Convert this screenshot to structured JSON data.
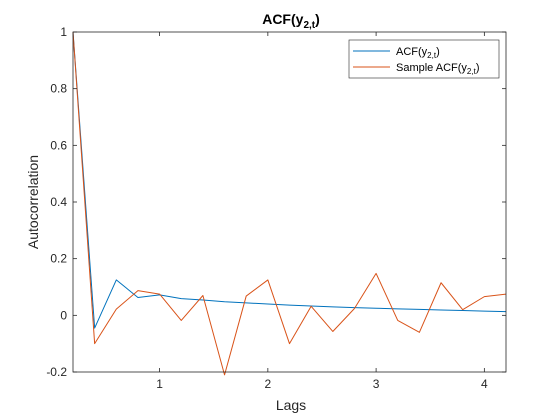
{
  "chart_data": {
    "type": "line",
    "title": "ACF(y",
    "title_sub": "2,t",
    "title_end": ")",
    "xlabel": "Lags",
    "ylabel": "Autocorrelation",
    "xlim": [
      0.2,
      4.2
    ],
    "ylim": [
      -0.2,
      1.0
    ],
    "xticks": [
      1,
      2,
      3,
      4
    ],
    "yticks": [
      -0.2,
      0,
      0.2,
      0.4,
      0.6,
      0.8,
      1
    ],
    "ytick_labels": [
      "-0.2",
      "0",
      "0.2",
      "0.4",
      "0.6",
      "0.8",
      "1"
    ],
    "legend_position": "top-right",
    "grid": false,
    "x": [
      0.2,
      0.4,
      0.6,
      0.8,
      1.0,
      1.2,
      1.4,
      1.6,
      1.8,
      2.0,
      2.2,
      2.4,
      2.6,
      2.8,
      3.0,
      3.2,
      3.4,
      3.6,
      3.8,
      4.0,
      4.2
    ],
    "series": [
      {
        "name": "ACF(y",
        "name_sub": "2,t",
        "name_end": ")",
        "color": "#0072bd",
        "values": [
          1.0,
          -0.045,
          0.125,
          0.063,
          0.072,
          0.059,
          0.054,
          0.048,
          0.044,
          0.04,
          0.036,
          0.033,
          0.03,
          0.027,
          0.025,
          0.023,
          0.021,
          0.019,
          0.017,
          0.015,
          0.013
        ]
      },
      {
        "name": "Sample ACF(y",
        "name_sub": "2,t",
        "name_end": ")",
        "color": "#d95319",
        "values": [
          1.0,
          -0.1,
          0.022,
          0.087,
          0.075,
          -0.018,
          0.07,
          -0.21,
          0.068,
          0.125,
          -0.1,
          0.032,
          -0.057,
          0.024,
          0.148,
          -0.018,
          -0.06,
          0.115,
          0.02,
          0.066,
          0.075
        ]
      }
    ]
  }
}
